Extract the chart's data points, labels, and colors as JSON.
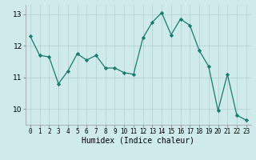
{
  "x": [
    0,
    1,
    2,
    3,
    4,
    5,
    6,
    7,
    8,
    9,
    10,
    11,
    12,
    13,
    14,
    15,
    16,
    17,
    18,
    19,
    20,
    21,
    22,
    23
  ],
  "y": [
    12.3,
    11.7,
    11.65,
    10.8,
    11.2,
    11.75,
    11.55,
    11.7,
    11.3,
    11.3,
    11.15,
    11.1,
    12.25,
    12.75,
    13.05,
    12.35,
    12.85,
    12.65,
    11.85,
    11.35,
    9.95,
    11.1,
    9.8,
    9.65
  ],
  "line_color": "#1a7a6e",
  "marker": "D",
  "marker_size": 2.2,
  "bg_color": "#ceeaea",
  "grid_color": "#b0d0d0",
  "xlabel": "Humidex (Indice chaleur)",
  "ylim": [
    9.5,
    13.3
  ],
  "yticks": [
    10,
    11,
    12,
    13
  ],
  "xlim": [
    -0.5,
    23.5
  ],
  "fig_bg": "#ceeaea",
  "tick_fontsize": 5.5,
  "xlabel_fontsize": 7.0,
  "ylabel_fontsize": 6.5,
  "grid_linewidth": 0.5,
  "line_width": 0.9
}
